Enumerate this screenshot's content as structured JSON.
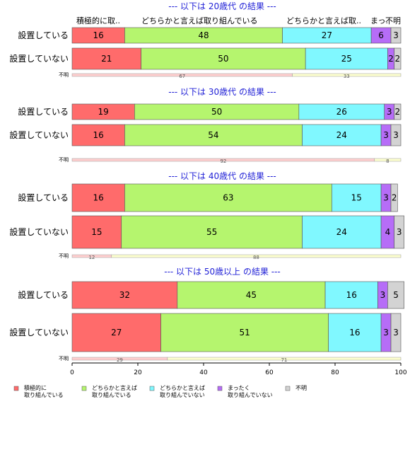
{
  "chart_data": {
    "type": "bar",
    "orientation": "horizontal",
    "stacked": true,
    "xlim": [
      0,
      100
    ],
    "x_ticks": [
      "0",
      "20",
      "40",
      "60",
      "80",
      "100"
    ],
    "header_labels": [
      "積極的に取..",
      "どちらかと言えば取り組んでいる",
      "どちらかと言えば取..",
      "まっ.",
      "不明"
    ],
    "segment_names": [
      "積極的に取り組んでいる",
      "どちらかと言えば取り組んでいる",
      "どちらかと言えば取り組んでいない",
      "まったく取り組んでいない",
      "不明"
    ],
    "legend": [
      {
        "line1": "積極的に",
        "line2": "取り組んでいる",
        "color": "#ff6b6b"
      },
      {
        "line1": "どちらかと言えば",
        "line2": "取り組んでいる",
        "color": "#b5f56e"
      },
      {
        "line1": "どちらかと言えば",
        "line2": "取り組んでいない",
        "color": "#80f8ff"
      },
      {
        "line1": "まったく",
        "line2": "取り組んでいない",
        "color": "#b66df7"
      },
      {
        "line1": "不明",
        "line2": "",
        "color": "#d3d3d3"
      }
    ],
    "panels": [
      {
        "title": "--- 以下は 20歳代 の結果 ---",
        "rows": [
          {
            "label": "設置している",
            "values": [
              16,
              48,
              27,
              6,
              3
            ]
          },
          {
            "label": "設置していない",
            "values": [
              21,
              50,
              25,
              2,
              2
            ]
          }
        ],
        "unknown_label": "不明",
        "unknown_values": [
          67,
          33
        ]
      },
      {
        "title": "--- 以下は 30歳代 の結果 ---",
        "rows": [
          {
            "label": "設置している",
            "values": [
              19,
              50,
              26,
              3,
              2
            ]
          },
          {
            "label": "設置していない",
            "values": [
              16,
              54,
              24,
              3,
              3
            ]
          }
        ],
        "unknown_label": "不明",
        "unknown_values": [
          92,
          8
        ]
      },
      {
        "title": "--- 以下は 40歳代 の結果 ---",
        "rows": [
          {
            "label": "設置している",
            "values": [
              16,
              63,
              15,
              3,
              2
            ]
          },
          {
            "label": "設置していない",
            "values": [
              15,
              55,
              24,
              4,
              3
            ]
          }
        ],
        "unknown_label": "不明",
        "unknown_values": [
          12,
          88
        ]
      },
      {
        "title": "--- 以下は 50歳以上 の結果 ---",
        "rows": [
          {
            "label": "設置している",
            "values": [
              32,
              45,
              16,
              3,
              5
            ]
          },
          {
            "label": "設置していない",
            "values": [
              27,
              51,
              16,
              3,
              3
            ]
          }
        ],
        "unknown_label": "不明",
        "unknown_values": [
          29,
          71
        ]
      }
    ]
  }
}
